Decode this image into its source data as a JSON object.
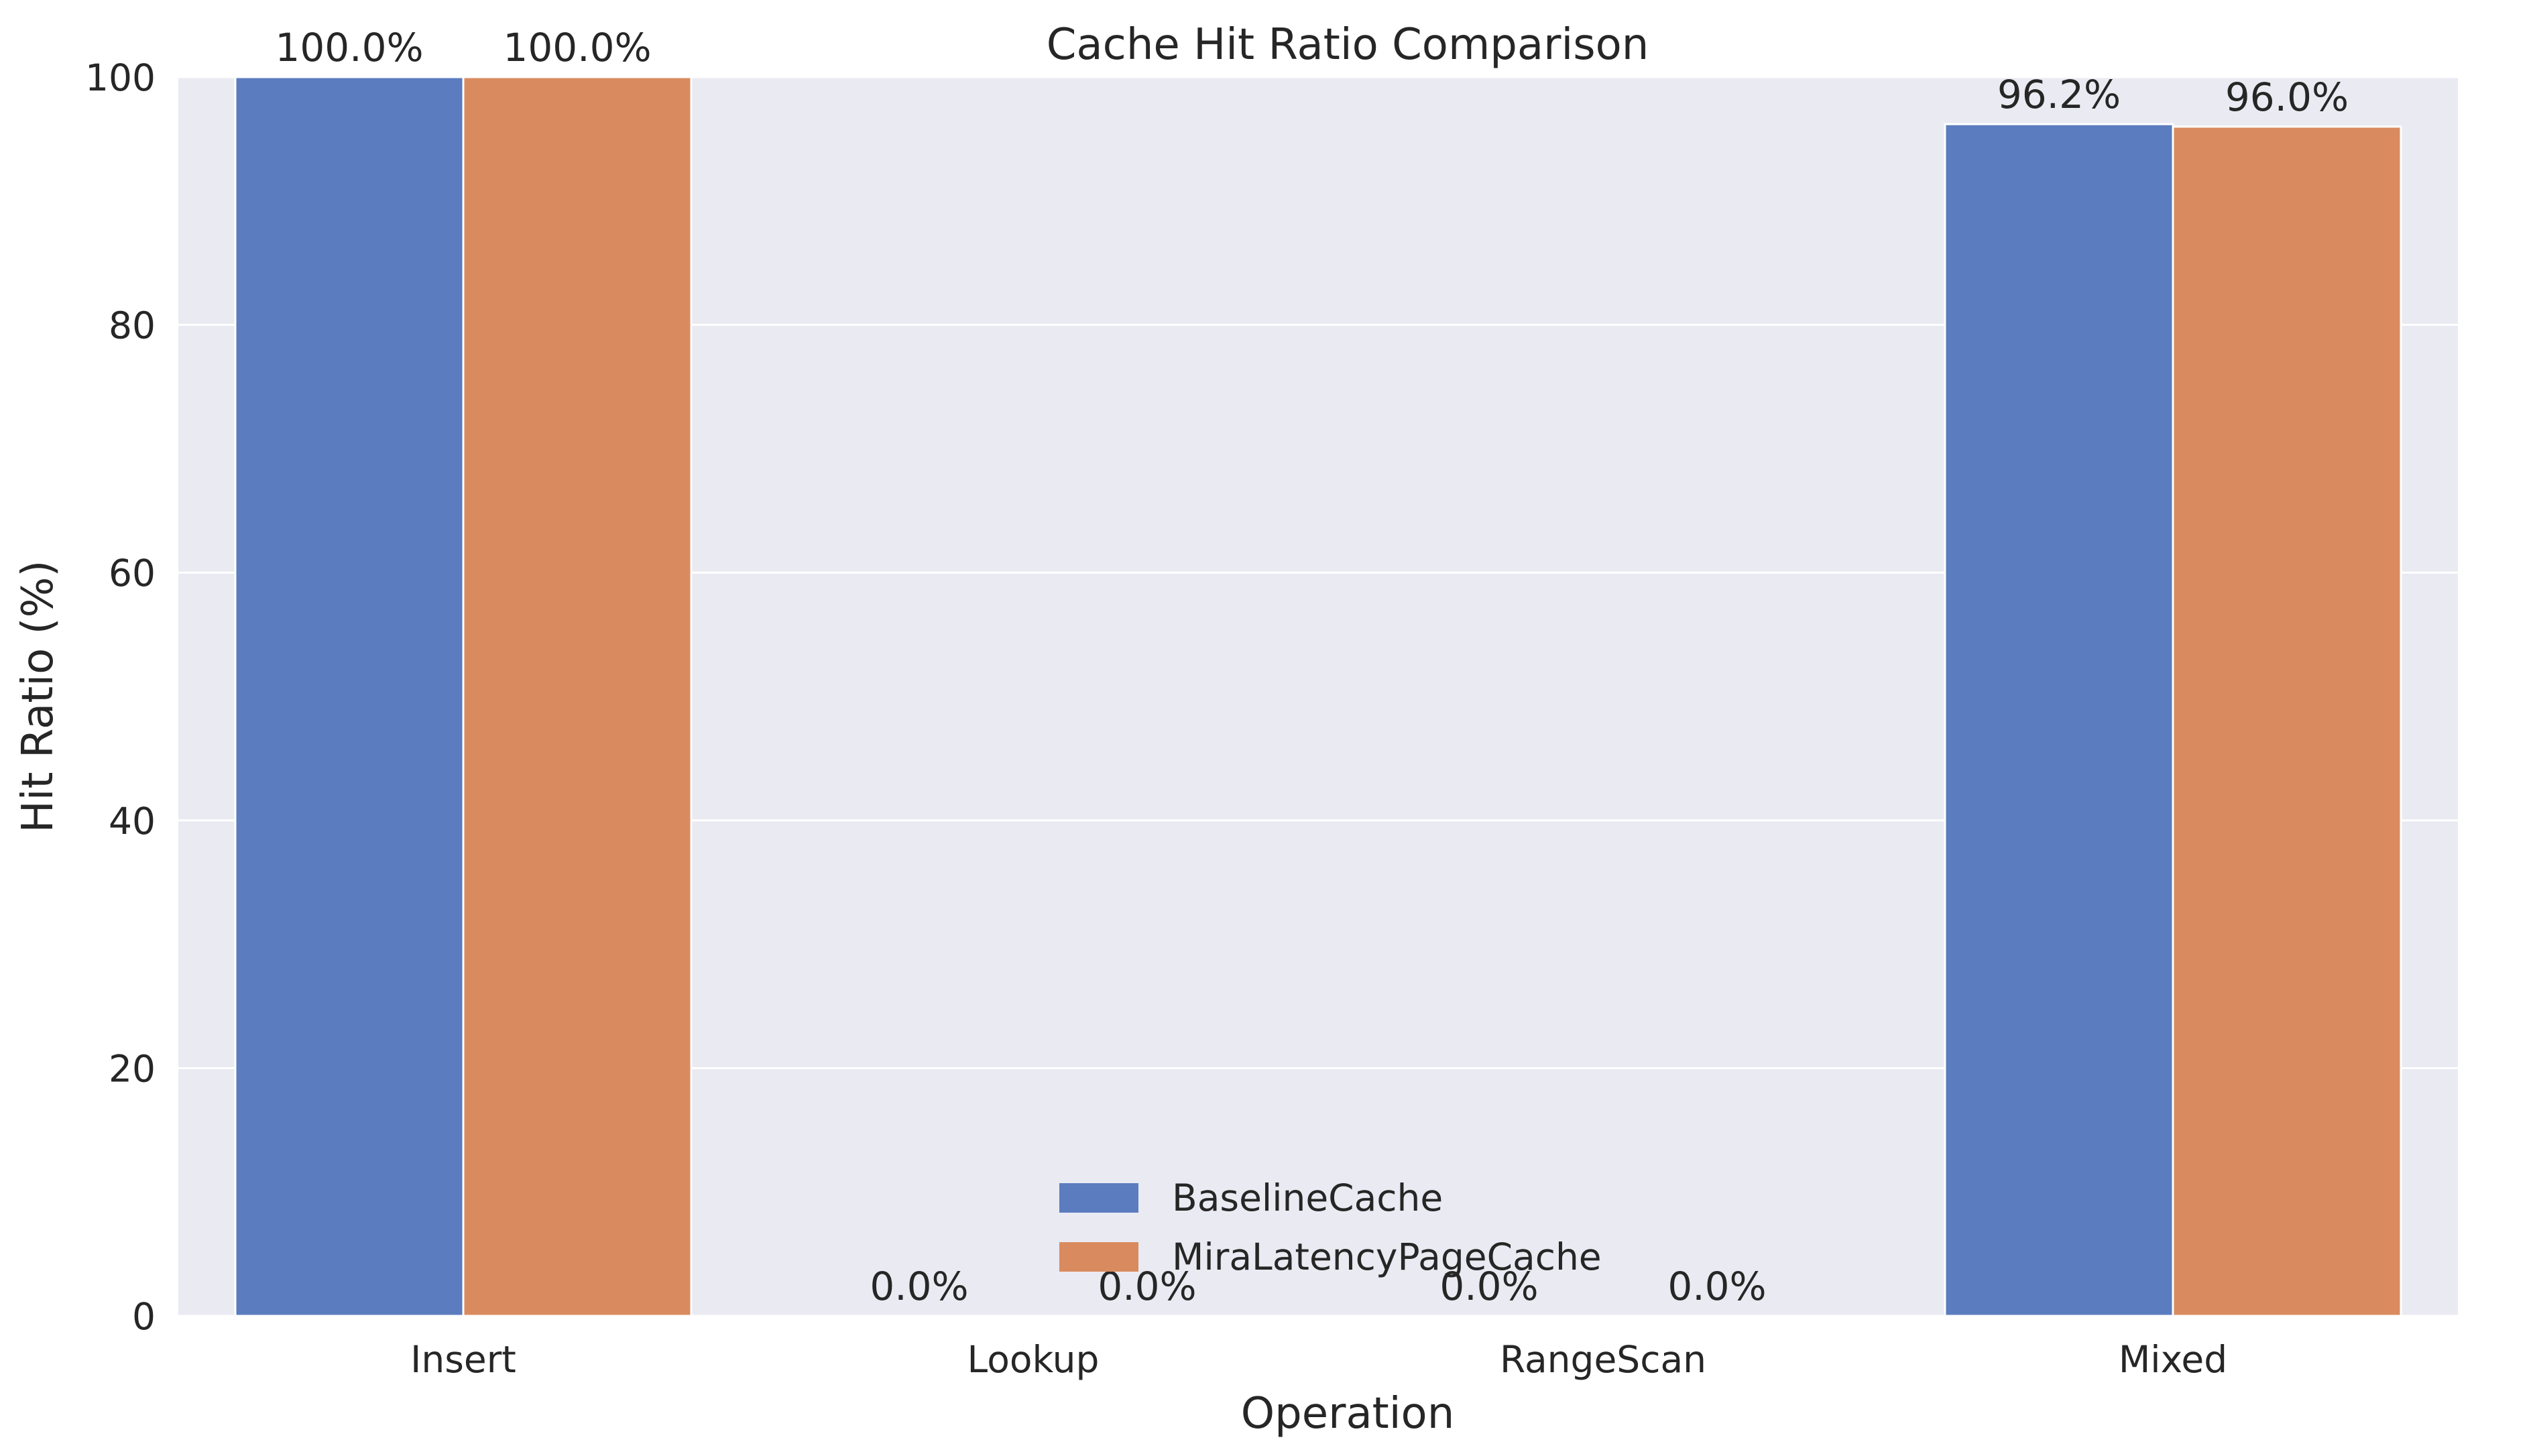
{
  "chart_data": {
    "type": "bar",
    "title": "Cache Hit Ratio Comparison",
    "xlabel": "Operation",
    "ylabel": "Hit Ratio (%)",
    "categories": [
      "Insert",
      "Lookup",
      "RangeScan",
      "Mixed"
    ],
    "series": [
      {
        "name": "BaselineCache",
        "color": "#5b7cbf",
        "values": [
          100.0,
          0.0,
          0.0,
          96.2
        ],
        "labels": [
          "100.0%",
          "0.0%",
          "0.0%",
          "96.2%"
        ]
      },
      {
        "name": "MiraLatencyPageCache",
        "color": "#d98b5f",
        "values": [
          100.0,
          0.0,
          0.0,
          96.0
        ],
        "labels": [
          "100.0%",
          "0.0%",
          "0.0%",
          "96.0%"
        ]
      }
    ],
    "ylim": [
      0,
      100
    ],
    "yticks": [
      0,
      20,
      40,
      60,
      80,
      100
    ],
    "ytick_labels": [
      "0",
      "20",
      "40",
      "60",
      "80",
      "100"
    ],
    "grid": true,
    "legend_position": "bottom-center",
    "colors": {
      "plot_background": "#eaeaf2",
      "grid": "#ffffff"
    }
  }
}
